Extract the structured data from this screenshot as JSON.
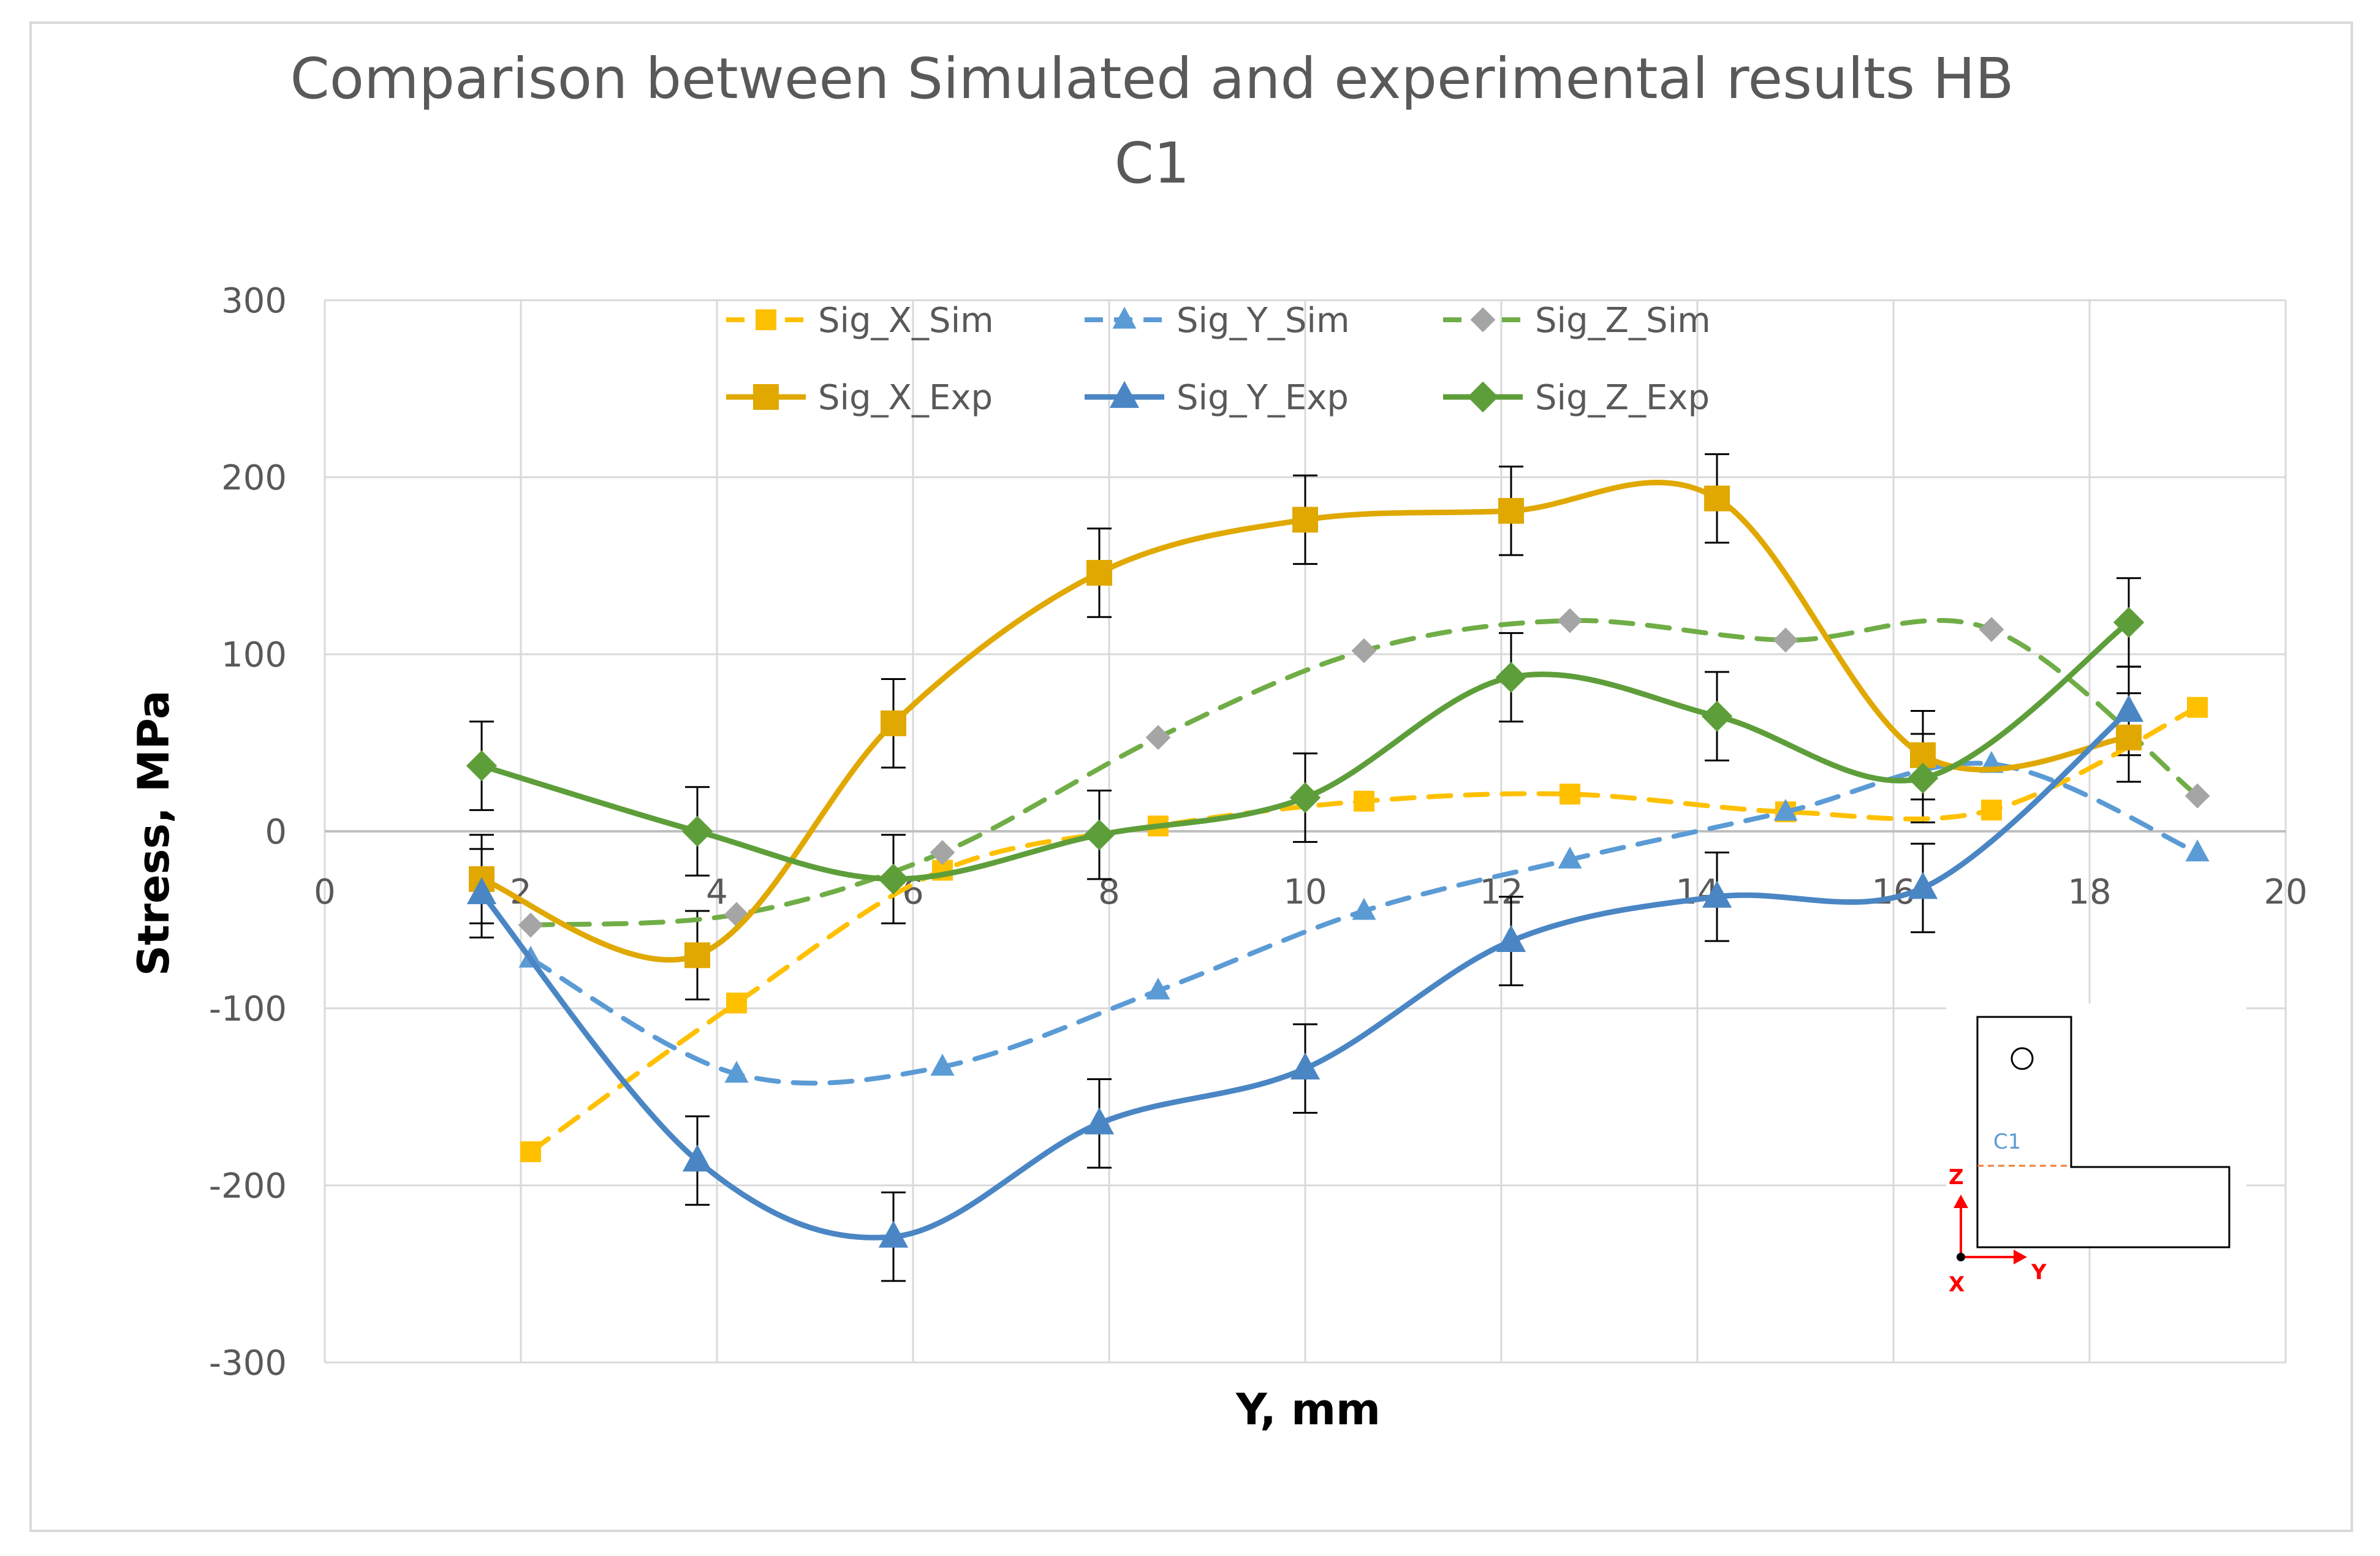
{
  "chart_data": {
    "type": "line",
    "title": "Comparison between Simulated and experimental results HB C1",
    "title_lines": [
      "Comparison between Simulated and experimental results HB",
      "C1"
    ],
    "xlabel": "Y, mm",
    "ylabel": "Stress, MPa",
    "xlim": [
      0,
      20
    ],
    "ylim": [
      -300,
      300
    ],
    "x_ticks": [
      0,
      2,
      4,
      6,
      8,
      10,
      12,
      14,
      16,
      18,
      20
    ],
    "y_ticks": [
      -300,
      -200,
      -100,
      0,
      100,
      200,
      300
    ],
    "grid": true,
    "legend_position": "top-center",
    "series": [
      {
        "name": "Sig_X_Sim",
        "color": "#ffc000",
        "dash": true,
        "marker": "square",
        "x": [
          2.1,
          4.2,
          6.3,
          8.5,
          10.6,
          12.7,
          14.9,
          17.0,
          19.1
        ],
        "y": [
          -181,
          -97,
          -22,
          3,
          17,
          21,
          11,
          12,
          70
        ]
      },
      {
        "name": "Sig_Y_Sim",
        "color": "#5b9bd5",
        "dash": true,
        "marker": "triangle",
        "x": [
          2.1,
          4.2,
          6.3,
          8.5,
          10.6,
          12.7,
          14.9,
          17.0,
          19.1
        ],
        "y": [
          -72,
          -137,
          -133,
          -90,
          -45,
          -16,
          11,
          38,
          -12
        ]
      },
      {
        "name": "Sig_Z_Sim",
        "color": "#70ad47",
        "dash": true,
        "marker": "diamond",
        "marker_color": "#a5a5a5",
        "x": [
          2.1,
          4.2,
          6.3,
          8.5,
          10.6,
          12.7,
          14.9,
          17.0,
          19.1
        ],
        "y": [
          -53,
          -47,
          -12,
          53,
          102,
          119,
          108,
          114,
          20
        ]
      },
      {
        "name": "Sig_X_Exp",
        "color": "#e0a800",
        "dash": false,
        "marker": "square",
        "x": [
          1.6,
          3.8,
          5.8,
          7.9,
          10.0,
          12.1,
          14.2,
          16.3,
          18.4
        ],
        "y": [
          -27,
          -70,
          61,
          146,
          176,
          181,
          188,
          43,
          53
        ]
      },
      {
        "name": "Sig_Y_Exp",
        "color": "#4a86c4",
        "dash": false,
        "marker": "triangle",
        "x": [
          1.6,
          3.8,
          5.8,
          7.9,
          10.0,
          12.1,
          14.2,
          16.3,
          18.4
        ],
        "y": [
          -35,
          -186,
          -229,
          -165,
          -134,
          -62,
          -37,
          -32,
          68
        ]
      },
      {
        "name": "Sig_Z_Exp",
        "color": "#5e9e3a",
        "dash": false,
        "marker": "diamond",
        "x": [
          1.6,
          3.8,
          5.8,
          7.9,
          10.0,
          12.1,
          14.2,
          16.3,
          18.4
        ],
        "y": [
          37,
          0,
          -27,
          -2,
          19,
          87,
          65,
          30,
          118
        ]
      }
    ],
    "error_bars": {
      "applies_to": "experimental",
      "plus_minus": 25
    },
    "inset": {
      "section_label": "C1",
      "axis_labels": [
        "Z",
        "X",
        "Y"
      ]
    }
  }
}
